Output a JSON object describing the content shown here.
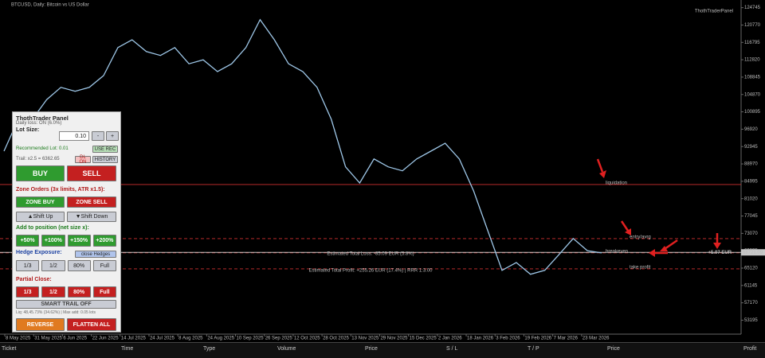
{
  "window": {
    "title": "BTCUSD, Daily: Bitcoin vs US Dollar",
    "indicator_label": "ThothTraderPanel"
  },
  "chart": {
    "ylim": [
      50000,
      126500
    ],
    "yticks": [
      53195,
      57170,
      61145,
      65120,
      69095,
      73070,
      77045,
      81020,
      84995,
      88970,
      92945,
      96920,
      100895,
      104870,
      108845,
      112820,
      116795,
      120770,
      124745
    ],
    "date_labels": [
      "8 May 2025",
      "31 May 2025",
      "6 Jun 2025",
      "22 Jun 2025",
      "14 Jul 2025",
      "24 Jul 2025",
      "8 Aug 2025",
      "24 Aug 2025",
      "10 Sep 2025",
      "26 Sep 2025",
      "12 Oct 2025",
      "28 Oct 2025",
      "13 Nov 2025",
      "29 Nov 2025",
      "15 Dec 2025",
      "2 Jan 2026",
      "18 Jan 2026",
      "3 Feb 2026",
      "19 Feb 2026",
      "7 Mar 2026",
      "23 Mar 2026"
    ],
    "close": [
      91900,
      99200,
      99200,
      103700,
      106500,
      105600,
      106500,
      109200,
      115600,
      117400,
      114700,
      113800,
      115600,
      111900,
      112800,
      110100,
      111900,
      115600,
      122000,
      117400,
      111900,
      110100,
      106500,
      99200,
      88300,
      84600,
      90100,
      88300,
      87400,
      90100,
      91900,
      93700,
      90100,
      82800,
      73700,
      64600,
      66400,
      63700,
      64600,
      68200,
      71900,
      69100,
      68600
    ],
    "close_color": "#9ec7e8",
    "current_price": {
      "value": 68721,
      "label": "68721.09"
    },
    "levels": [
      {
        "name": "liquidation",
        "price": 84250,
        "color": "#d03030"
      },
      {
        "name": "entry/avrg",
        "price": 71870,
        "color": "#d03030"
      },
      {
        "name": "breakeven",
        "price": 68600,
        "color": "#d03030"
      },
      {
        "name": "take profit",
        "price": 64950,
        "color": "#d03030"
      }
    ],
    "loss_text": "Estimated Total Loss: -85.09 EUR (5.8%)",
    "profit_text": "Estimated Total Profit: +255.26 EUR (17.4%) | RRR 1:3.00",
    "pnl_text": "+5.07 EUR"
  },
  "panel": {
    "title": "ThothTrader Panel",
    "daily_loss": "Daily loss: ON (6.0%)",
    "lot_label": "Lot Size:",
    "lot_value": "0.10",
    "minus": "-",
    "plus": "+",
    "recommended": "Recommended Lot: 0.01",
    "use_rec": "USE REC",
    "trail": "Trail: x2.5 = 6362.65",
    "dl_on": "DL ON",
    "history": "HISTORY",
    "buy": "BUY",
    "sell": "SELL",
    "zone_title": "Zone Orders (3x limits, ATR x1.5):",
    "zone_buy": "ZONE BUY",
    "zone_sell": "ZONE SELL",
    "shift_up": "▲Shift Up",
    "shift_down": "▼Shift Down",
    "add_title": "Add to position (net size x):",
    "add_buttons": [
      "+50%",
      "+100%",
      "+150%",
      "+200%"
    ],
    "hedge_title": "Hedge Exposure:",
    "close_hedges": "close Hedges",
    "hedge_buttons": [
      "1/3",
      "1/2",
      "80%",
      "Full"
    ],
    "partial_title": "Partial Close:",
    "partial_buttons": [
      "1/3",
      "1/2",
      "80%",
      "Full"
    ],
    "smart_trail": "SMART TRAIL OFF",
    "liq_info": "Liq: 48,45.73% (34.62%) | Max add: 0.05 lots",
    "reverse": "REVERSE",
    "flatten": "FLATTEN ALL"
  },
  "table": {
    "headers": [
      "Ticket",
      "Time",
      "Type",
      "Volume",
      "Price",
      "S / L",
      "T / P",
      "Price",
      "Profit"
    ]
  }
}
